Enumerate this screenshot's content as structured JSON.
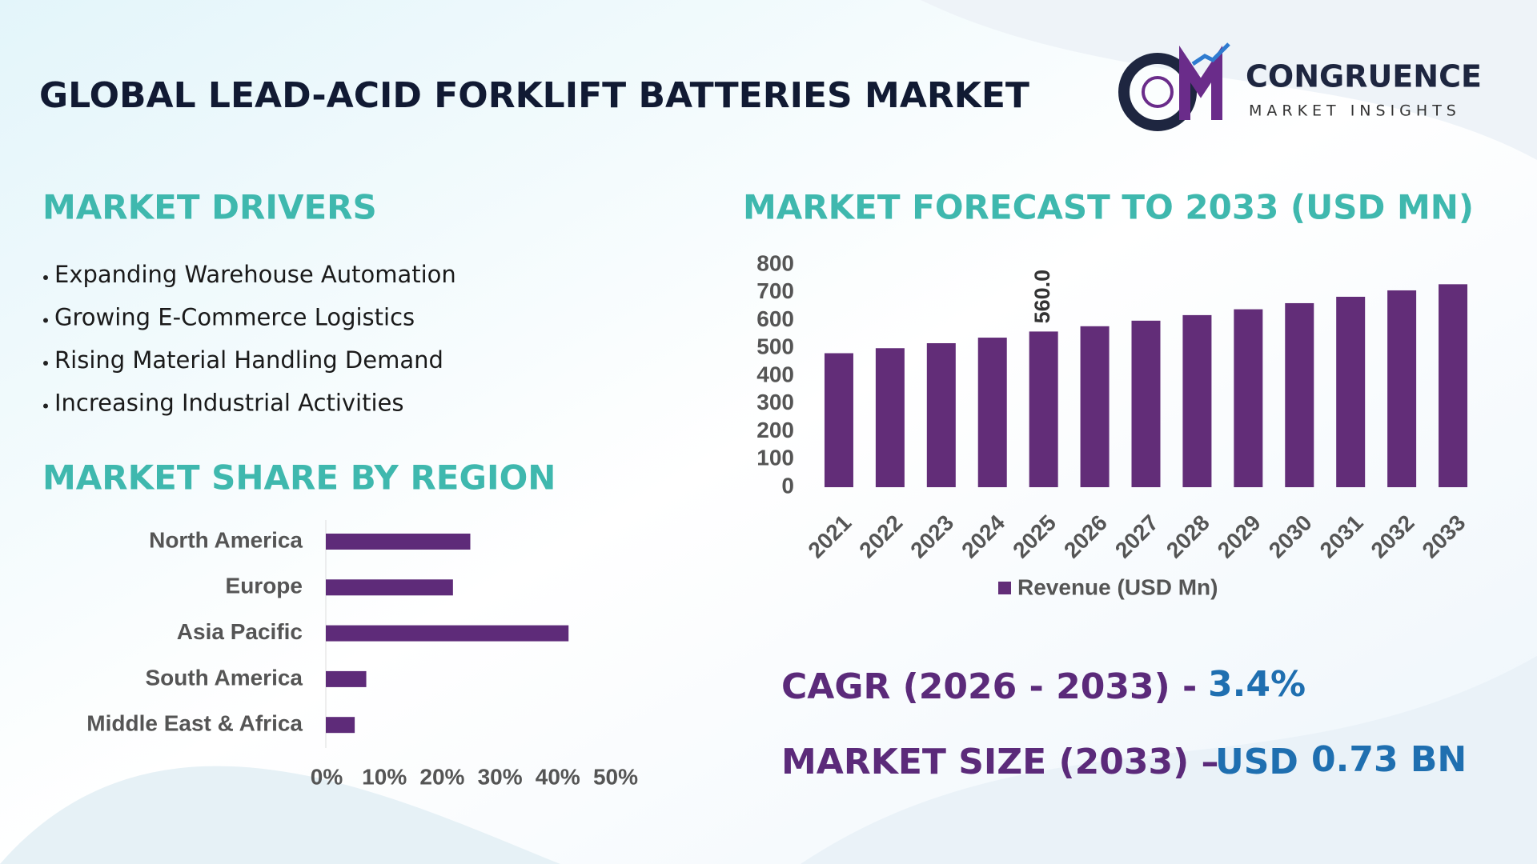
{
  "header": {
    "title": "GLOBAL LEAD-ACID FORKLIFT BATTERIES MARKET",
    "brand": "CONGRUENCE",
    "tagline": "MARKET INSIGHTS"
  },
  "drivers": {
    "title": "MARKET DRIVERS",
    "items": [
      "Expanding Warehouse Automation",
      "Growing E-Commerce Logistics",
      "Rising Material Handling Demand",
      "Increasing Industrial Activities"
    ]
  },
  "chart_data": [
    {
      "type": "barh",
      "title": "MARKET SHARE BY REGION",
      "color": "#5e2b79",
      "categories": [
        "North America",
        "Europe",
        "Asia Pacific",
        "South America",
        "Middle East & Africa"
      ],
      "values": [
        25,
        22,
        42,
        7,
        5
      ],
      "xlim": [
        0,
        50
      ],
      "xticks": [
        {
          "value": 0,
          "label": "0%"
        },
        {
          "value": 10,
          "label": "10%"
        },
        {
          "value": 20,
          "label": "20%"
        },
        {
          "value": 30,
          "label": "30%"
        },
        {
          "value": 40,
          "label": "40%"
        },
        {
          "value": 50,
          "label": "50%"
        }
      ]
    },
    {
      "type": "bar",
      "title": "MARKET FORECAST TO 2033 (USD MN)",
      "color": "#622d78",
      "categories": [
        "2021",
        "2022",
        "2023",
        "2024",
        "2025",
        "2026",
        "2027",
        "2028",
        "2029",
        "2030",
        "2031",
        "2032",
        "2033"
      ],
      "series": [
        {
          "name": "Revenue (USD Mn)",
          "color": "#622d78",
          "values": [
            482,
            500,
            518,
            538,
            560,
            579,
            599,
            619,
            640,
            662,
            685,
            708,
            730
          ],
          "value_labels": [
            null,
            null,
            null,
            null,
            "560.0",
            null,
            null,
            null,
            null,
            null,
            null,
            null,
            null
          ]
        }
      ],
      "ylim": [
        0,
        800
      ],
      "yticks": [
        0,
        100,
        200,
        300,
        400,
        500,
        600,
        700,
        800
      ],
      "legend": "bottom"
    }
  ],
  "cagr": {
    "label": "CAGR (2026 - 2033) -",
    "value": "3.4%"
  },
  "market_size": {
    "label": "MARKET SIZE (2033) –",
    "currency": "USD",
    "value": "0.73 BN"
  }
}
